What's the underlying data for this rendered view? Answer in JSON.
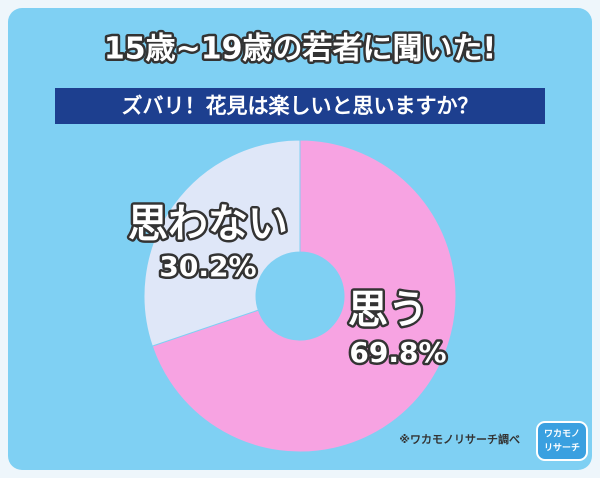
{
  "chart_data": {
    "type": "pie",
    "title": "15歳~19歳の若者に聞いた!",
    "subtitle": "ズバリ！花見は楽しいと思いますか？",
    "categories": [
      "思う",
      "思わない"
    ],
    "values": [
      69.8,
      30.2
    ],
    "value_labels": [
      "69.8%",
      "30.2%"
    ],
    "colors": [
      "#f7a3e2",
      "#dfe7f8"
    ],
    "source": "※ワカモノリサーチ調べ",
    "logo": [
      "ワカモノ",
      "リサーチ"
    ]
  }
}
